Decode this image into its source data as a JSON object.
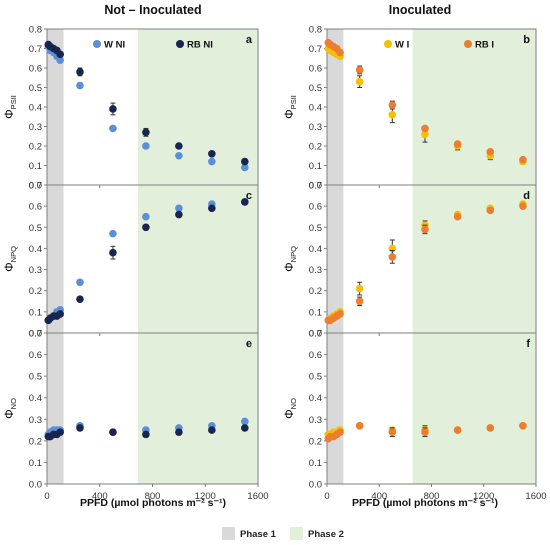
{
  "figure": {
    "left_title": "Not – Inoculated",
    "right_title": "Inoculated",
    "xlabel": "PPFD (µmol photons m⁻² s⁻¹)",
    "phase_legend": [
      {
        "label": "Phase 1",
        "color": "#d9d9d9"
      },
      {
        "label": "Phase 2",
        "color": "#e2efda"
      }
    ]
  },
  "chart_data": [
    {
      "type": "scatter",
      "panel": "a",
      "ylabel": "Φ",
      "ylabel_sub": "PSII",
      "xlim": [
        0,
        1600
      ],
      "ylim": [
        0,
        0.8
      ],
      "xticks": [
        "0",
        "400",
        "800",
        "1200",
        "1600"
      ],
      "yticks": [
        "0.0",
        "0.1",
        "0.2",
        "0.3",
        "0.4",
        "0.5",
        "0.6",
        "0.7",
        "0.8"
      ],
      "phase1": [
        0,
        125
      ],
      "phase2": [
        690,
        1600
      ],
      "series": [
        {
          "name": "W NI",
          "color": "#5b8fd9",
          "x": [
            10,
            25,
            50,
            75,
            100,
            250,
            500,
            750,
            1000,
            1250,
            1500
          ],
          "y": [
            0.71,
            0.69,
            0.68,
            0.66,
            0.64,
            0.51,
            0.29,
            0.2,
            0.15,
            0.12,
            0.09
          ],
          "err": [
            0,
            0,
            0,
            0,
            0,
            0.01,
            0,
            0.01,
            0,
            0,
            0
          ]
        },
        {
          "name": "RB NI",
          "color": "#17254f",
          "x": [
            10,
            25,
            50,
            75,
            100,
            250,
            500,
            750,
            1000,
            1250,
            1500
          ],
          "y": [
            0.72,
            0.71,
            0.7,
            0.69,
            0.67,
            0.58,
            0.39,
            0.27,
            0.2,
            0.16,
            0.12
          ],
          "err": [
            0,
            0,
            0,
            0,
            0,
            0.02,
            0.03,
            0.02,
            0,
            0,
            0
          ]
        }
      ]
    },
    {
      "type": "scatter",
      "panel": "c",
      "ylabel": "Φ",
      "ylabel_sub": "NPQ",
      "xlim": [
        0,
        1600
      ],
      "ylim": [
        0,
        0.7
      ],
      "xticks": [
        "0",
        "400",
        "800",
        "1200",
        "1600"
      ],
      "yticks": [
        "0.0",
        "0.1",
        "0.2",
        "0.3",
        "0.4",
        "0.5",
        "0.6",
        "0.7"
      ],
      "phase1": [
        0,
        125
      ],
      "phase2": [
        690,
        1600
      ],
      "series": [
        {
          "name": "W NI",
          "color": "#5b8fd9",
          "x": [
            10,
            25,
            50,
            75,
            100,
            250,
            500,
            750,
            1000,
            1250,
            1500
          ],
          "y": [
            0.06,
            0.07,
            0.08,
            0.1,
            0.11,
            0.24,
            0.47,
            0.55,
            0.59,
            0.61,
            0.62
          ],
          "err": [
            0,
            0,
            0,
            0,
            0,
            0,
            0,
            0,
            0,
            0,
            0
          ]
        },
        {
          "name": "RB NI",
          "color": "#17254f",
          "x": [
            10,
            25,
            50,
            75,
            100,
            250,
            500,
            750,
            1000,
            1250,
            1500
          ],
          "y": [
            0.06,
            0.07,
            0.08,
            0.08,
            0.09,
            0.16,
            0.38,
            0.5,
            0.56,
            0.59,
            0.62
          ],
          "err": [
            0,
            0,
            0,
            0,
            0,
            0.01,
            0.03,
            0.01,
            0,
            0,
            0
          ]
        }
      ]
    },
    {
      "type": "scatter",
      "panel": "e",
      "ylabel": "Φ",
      "ylabel_sub": "NO",
      "xlim": [
        0,
        1600
      ],
      "ylim": [
        0,
        0.7
      ],
      "xticks": [
        "0",
        "400",
        "800",
        "1200",
        "1600"
      ],
      "yticks": [
        "0.0",
        "0.1",
        "0.2",
        "0.3",
        "0.4",
        "0.5",
        "0.6",
        "0.7"
      ],
      "phase1": [
        0,
        125
      ],
      "phase2": [
        690,
        1600
      ],
      "series": [
        {
          "name": "W NI",
          "color": "#5b8fd9",
          "x": [
            10,
            25,
            50,
            75,
            100,
            250,
            500,
            750,
            1000,
            1250,
            1500
          ],
          "y": [
            0.23,
            0.24,
            0.25,
            0.25,
            0.25,
            0.27,
            0.24,
            0.25,
            0.26,
            0.27,
            0.29
          ],
          "err": [
            0,
            0,
            0,
            0,
            0,
            0.01,
            0,
            0,
            0,
            0,
            0
          ]
        },
        {
          "name": "RB NI",
          "color": "#17254f",
          "x": [
            10,
            25,
            50,
            75,
            100,
            250,
            500,
            750,
            1000,
            1250,
            1500
          ],
          "y": [
            0.22,
            0.22,
            0.23,
            0.23,
            0.24,
            0.26,
            0.24,
            0.23,
            0.24,
            0.25,
            0.26
          ],
          "err": [
            0,
            0,
            0,
            0,
            0,
            0.01,
            0.01,
            0.01,
            0,
            0,
            0
          ]
        }
      ]
    },
    {
      "type": "scatter",
      "panel": "b",
      "ylabel": "Φ",
      "ylabel_sub": "PSII",
      "xlim": [
        0,
        1600
      ],
      "ylim": [
        0,
        0.8
      ],
      "xticks": [
        "0",
        "400",
        "800",
        "1200",
        "1600"
      ],
      "yticks": [
        "0.0",
        "0.1",
        "0.2",
        "0.3",
        "0.4",
        "0.5",
        "0.6",
        "0.7",
        "0.8"
      ],
      "phase1": [
        0,
        125
      ],
      "phase2": [
        655,
        1600
      ],
      "series": [
        {
          "name": "W I",
          "color": "#f5c000",
          "x": [
            10,
            25,
            50,
            75,
            100,
            250,
            500,
            750,
            1000,
            1250,
            1500
          ],
          "y": [
            0.7,
            0.69,
            0.68,
            0.67,
            0.66,
            0.53,
            0.36,
            0.26,
            0.2,
            0.15,
            0.12
          ],
          "err": [
            0,
            0,
            0,
            0,
            0,
            0.03,
            0.04,
            0.04,
            0.02,
            0.02,
            0.01
          ]
        },
        {
          "name": "RB I",
          "color": "#ed7d31",
          "x": [
            10,
            25,
            50,
            75,
            100,
            250,
            500,
            750,
            1000,
            1250,
            1500
          ],
          "y": [
            0.73,
            0.72,
            0.71,
            0.7,
            0.68,
            0.59,
            0.41,
            0.29,
            0.21,
            0.17,
            0.13
          ],
          "err": [
            0,
            0,
            0,
            0,
            0,
            0.02,
            0.02,
            0.01,
            0.01,
            0.01,
            0.01
          ]
        }
      ]
    },
    {
      "type": "scatter",
      "panel": "d",
      "ylabel": "Φ",
      "ylabel_sub": "NPQ",
      "xlim": [
        0,
        1600
      ],
      "ylim": [
        0,
        0.7
      ],
      "xticks": [
        "0",
        "400",
        "800",
        "1200",
        "1600"
      ],
      "yticks": [
        "0.0",
        "0.1",
        "0.2",
        "0.3",
        "0.4",
        "0.5",
        "0.6",
        "0.7"
      ],
      "phase1": [
        0,
        125
      ],
      "phase2": [
        655,
        1600
      ],
      "series": [
        {
          "name": "W I",
          "color": "#f5c000",
          "x": [
            10,
            25,
            50,
            75,
            100,
            250,
            500,
            750,
            1000,
            1250,
            1500
          ],
          "y": [
            0.06,
            0.07,
            0.08,
            0.09,
            0.1,
            0.21,
            0.4,
            0.51,
            0.56,
            0.59,
            0.61
          ],
          "err": [
            0,
            0,
            0,
            0,
            0,
            0.03,
            0.04,
            0.02,
            0.01,
            0.01,
            0.01
          ]
        },
        {
          "name": "RB I",
          "color": "#ed7d31",
          "x": [
            10,
            25,
            50,
            75,
            100,
            250,
            500,
            750,
            1000,
            1250,
            1500
          ],
          "y": [
            0.06,
            0.06,
            0.07,
            0.08,
            0.09,
            0.15,
            0.36,
            0.49,
            0.55,
            0.58,
            0.6
          ],
          "err": [
            0,
            0,
            0,
            0,
            0,
            0.02,
            0.03,
            0.02,
            0.01,
            0.01,
            0.01
          ]
        }
      ]
    },
    {
      "type": "scatter",
      "panel": "f",
      "ylabel": "Φ",
      "ylabel_sub": "NO",
      "xlim": [
        0,
        1600
      ],
      "ylim": [
        0,
        0.7
      ],
      "xticks": [
        "0",
        "400",
        "800",
        "1200",
        "1600"
      ],
      "yticks": [
        "0.0",
        "0.1",
        "0.2",
        "0.3",
        "0.4",
        "0.5",
        "0.6",
        "0.7"
      ],
      "phase1": [
        0,
        125
      ],
      "phase2": [
        655,
        1600
      ],
      "series": [
        {
          "name": "W I",
          "color": "#f5c000",
          "x": [
            10,
            25,
            50,
            75,
            100,
            250,
            500,
            750,
            1000,
            1250,
            1500
          ],
          "y": [
            0.23,
            0.23,
            0.24,
            0.24,
            0.25,
            0.27,
            0.25,
            0.25,
            0.25,
            0.26,
            0.27
          ],
          "err": [
            0,
            0,
            0,
            0,
            0,
            0.01,
            0.01,
            0.02,
            0.01,
            0.01,
            0.01
          ]
        },
        {
          "name": "RB I",
          "color": "#ed7d31",
          "x": [
            10,
            25,
            50,
            75,
            100,
            250,
            500,
            750,
            1000,
            1250,
            1500
          ],
          "y": [
            0.21,
            0.22,
            0.22,
            0.23,
            0.24,
            0.27,
            0.24,
            0.24,
            0.25,
            0.26,
            0.27
          ],
          "err": [
            0,
            0,
            0,
            0,
            0,
            0.01,
            0.02,
            0.02,
            0.01,
            0.01,
            0.01
          ]
        }
      ]
    }
  ]
}
